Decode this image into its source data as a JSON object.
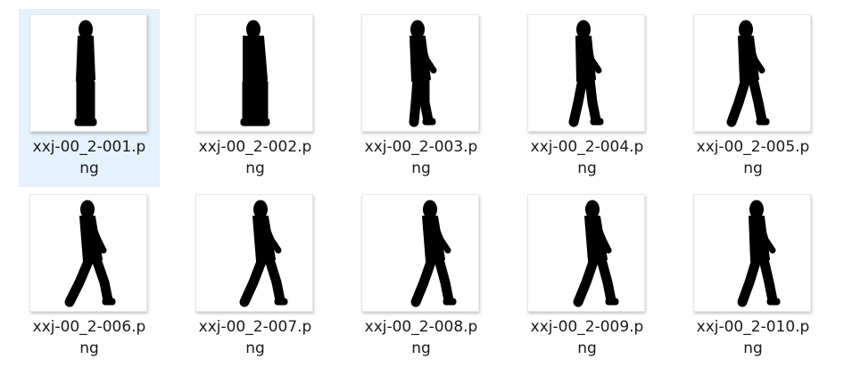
{
  "files": [
    {
      "line1": "xxj-00_2-001.p",
      "line2": "ng",
      "selected": true,
      "pose": 1,
      "icon": "silhouette-thumbnail"
    },
    {
      "line1": "xxj-00_2-002.p",
      "line2": "ng",
      "selected": false,
      "pose": 2,
      "icon": "silhouette-thumbnail"
    },
    {
      "line1": "xxj-00_2-003.p",
      "line2": "ng",
      "selected": false,
      "pose": 3,
      "icon": "silhouette-thumbnail"
    },
    {
      "line1": "xxj-00_2-004.p",
      "line2": "ng",
      "selected": false,
      "pose": 4,
      "icon": "silhouette-thumbnail"
    },
    {
      "line1": "xxj-00_2-005.p",
      "line2": "ng",
      "selected": false,
      "pose": 5,
      "icon": "silhouette-thumbnail"
    },
    {
      "line1": "xxj-00_2-006.p",
      "line2": "ng",
      "selected": false,
      "pose": 6,
      "icon": "silhouette-thumbnail"
    },
    {
      "line1": "xxj-00_2-007.p",
      "line2": "ng",
      "selected": false,
      "pose": 7,
      "icon": "silhouette-thumbnail"
    },
    {
      "line1": "xxj-00_2-008.p",
      "line2": "ng",
      "selected": false,
      "pose": 8,
      "icon": "silhouette-thumbnail"
    },
    {
      "line1": "xxj-00_2-009.p",
      "line2": "ng",
      "selected": false,
      "pose": 9,
      "icon": "silhouette-thumbnail"
    },
    {
      "line1": "xxj-00_2-010.p",
      "line2": "ng",
      "selected": false,
      "pose": 10,
      "icon": "silhouette-thumbnail"
    }
  ],
  "colors": {
    "selection": "#e5f1fb",
    "silhouette": "#000000",
    "text": "#1a1a1a"
  }
}
